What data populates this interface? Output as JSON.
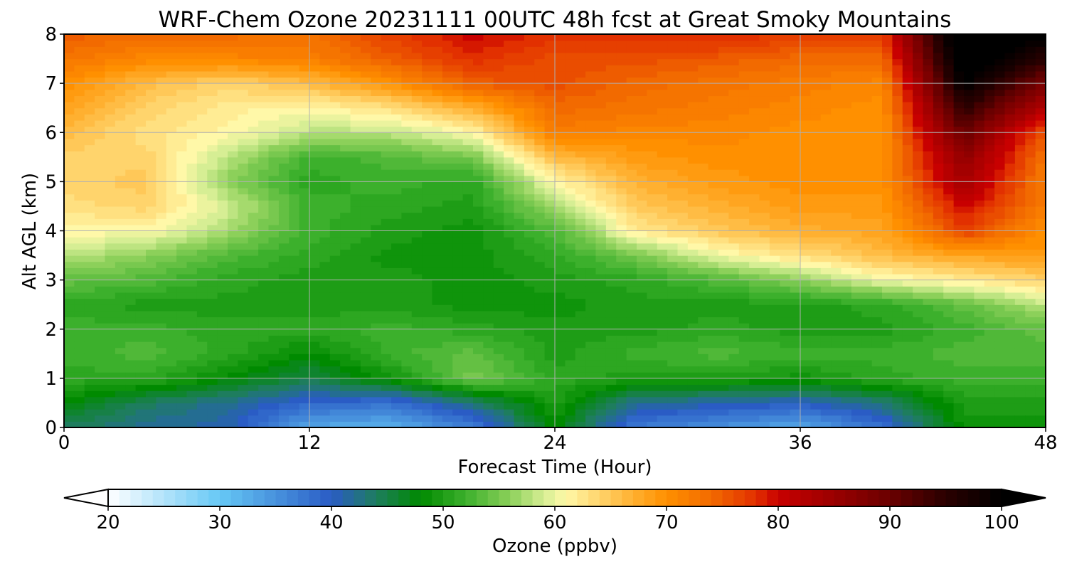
{
  "chart_data": {
    "type": "heatmap",
    "title": "WRF-Chem Ozone  20231111 00UTC 48h fcst at Great Smoky Mountains",
    "xlabel": "Forecast Time (Hour)",
    "ylabel": "Alt AGL (km)",
    "xlim": [
      0,
      48
    ],
    "ylim": [
      0,
      8
    ],
    "xticks": [
      0,
      12,
      24,
      36,
      48
    ],
    "yticks": [
      0,
      1,
      2,
      3,
      4,
      5,
      6,
      7,
      8
    ],
    "grid": true,
    "x": [
      0,
      4,
      8,
      12,
      16,
      20,
      24,
      28,
      32,
      36,
      40,
      44,
      48
    ],
    "y": [
      0,
      0.5,
      1,
      1.5,
      2,
      2.5,
      3,
      3.5,
      4,
      4.5,
      5,
      5.5,
      6,
      6.5,
      7,
      7.5,
      8
    ],
    "z": [
      [
        44,
        42,
        41,
        33,
        32,
        37,
        48,
        37,
        35,
        33,
        38,
        49,
        49
      ],
      [
        48,
        44,
        42,
        39,
        38,
        43,
        50,
        42,
        41,
        40,
        43,
        50,
        50
      ],
      [
        51,
        51,
        48,
        45,
        49,
        55,
        51,
        50,
        50,
        49,
        51,
        52,
        52
      ],
      [
        52,
        53,
        51,
        48,
        52,
        54,
        50,
        52,
        53,
        52,
        52,
        53,
        53
      ],
      [
        52,
        52,
        51,
        51,
        52,
        51,
        50,
        50,
        51,
        50,
        50,
        52,
        54
      ],
      [
        51,
        50,
        50,
        50,
        50,
        49,
        49,
        50,
        50,
        50,
        51,
        54,
        58
      ],
      [
        54,
        53,
        51,
        50,
        50,
        49,
        50,
        51,
        53,
        56,
        60,
        62,
        64
      ],
      [
        58,
        56,
        53,
        51,
        49,
        49,
        51,
        55,
        60,
        63,
        66,
        68,
        69
      ],
      [
        61,
        61,
        57,
        52,
        50,
        49,
        53,
        62,
        65,
        67,
        68,
        77,
        70
      ],
      [
        63,
        64,
        59,
        52,
        51,
        50,
        57,
        65,
        67,
        69,
        69,
        80,
        72
      ],
      [
        64,
        65,
        56,
        51,
        52,
        51,
        61,
        67,
        69,
        70,
        70,
        84,
        72
      ],
      [
        64,
        64,
        58,
        52,
        53,
        55,
        66,
        69,
        70,
        70,
        70,
        86,
        73
      ],
      [
        66,
        63,
        61,
        58,
        58,
        61,
        72,
        71,
        71,
        70,
        70,
        90,
        75
      ],
      [
        68,
        64,
        62,
        61,
        63,
        67,
        74,
        73,
        72,
        71,
        70,
        95,
        82
      ],
      [
        70,
        66,
        64,
        66,
        70,
        75,
        76,
        74,
        73,
        72,
        71,
        100,
        88
      ],
      [
        73,
        71,
        71,
        72,
        75,
        78,
        76,
        76,
        75,
        74,
        74,
        103,
        95
      ],
      [
        75,
        74,
        74,
        73,
        77,
        80,
        78,
        78,
        79,
        77,
        77,
        105,
        100
      ]
    ],
    "colorbar": {
      "label": "Ozone  (ppbv)",
      "min": 20,
      "max": 100,
      "ticks": [
        20,
        30,
        40,
        50,
        60,
        70,
        80,
        90,
        100
      ],
      "extend": "both",
      "colors": {
        "20": "#ffffff",
        "30": "#66c8f5",
        "40": "#2a5cc5",
        "44": "#1e7d5e",
        "48": "#008a00",
        "52": "#3cb02c",
        "56": "#8cd05a",
        "59": "#d6ee94",
        "61": "#fff8a8",
        "63": "#ffe080",
        "67": "#ffb030",
        "70": "#ff9000",
        "74": "#f26a00",
        "78": "#e23000",
        "80": "#c80000",
        "85": "#9a0000",
        "90": "#6a0000",
        "95": "#2a0000",
        "100": "#000000"
      }
    }
  }
}
